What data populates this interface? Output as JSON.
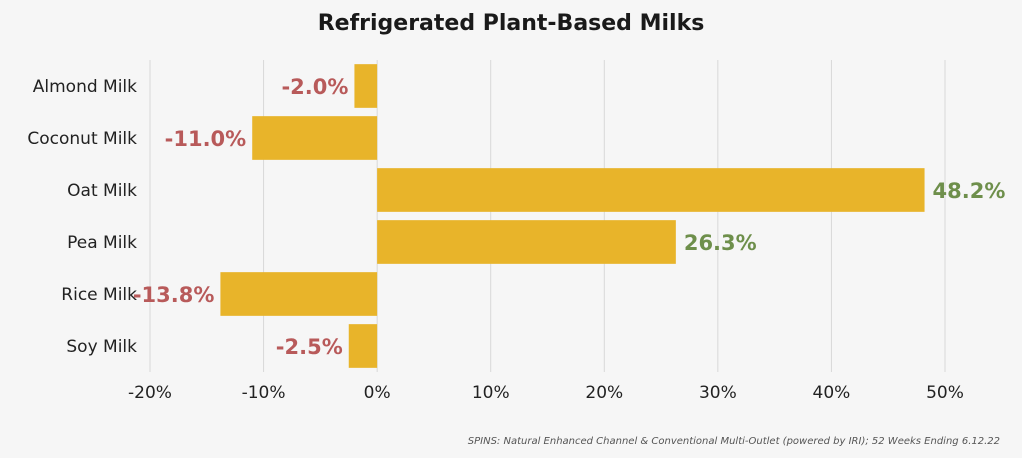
{
  "chart_data": {
    "type": "bar",
    "orientation": "horizontal",
    "title": "Refrigerated Plant-Based Milks",
    "categories": [
      "Almond Milk",
      "Coconut Milk",
      "Oat Milk",
      "Pea Milk",
      "Rice Milk",
      "Soy Milk"
    ],
    "values": [
      -2.0,
      -11.0,
      48.2,
      26.3,
      -13.8,
      -2.5
    ],
    "data_labels": [
      "-2.0%",
      "-11.0%",
      "48.2%",
      "26.3%",
      "-13.8%",
      "-2.5%"
    ],
    "xticks": [
      -20,
      -10,
      0,
      10,
      20,
      30,
      40,
      50
    ],
    "xtick_labels": [
      "-20%",
      "-10%",
      "0%",
      "10%",
      "20%",
      "30%",
      "40%",
      "50%"
    ],
    "xlim": [
      -20,
      50
    ],
    "grid": true,
    "legend": "none",
    "source": "SPINS: Natural Enhanced Channel & Conventional Multi-Outlet (powered by IRI); 52 Weeks Ending 6.12.22",
    "colors": {
      "bar": "#E8B42A",
      "positive_label": "#6E8F4B",
      "negative_label": "#B85A5A",
      "grid": "#d8d8d8"
    }
  }
}
